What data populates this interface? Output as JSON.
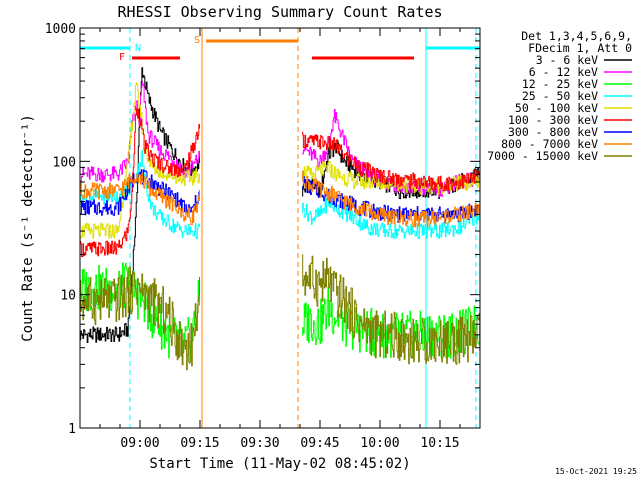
{
  "chart_data": {
    "type": "line",
    "title": "RHESSI Observing Summary Count Rates",
    "xlabel": "Start Time (11-May-02 08:45:02)",
    "ylabel": "Count Rate (s⁻¹ detector⁻¹)",
    "yscale": "log",
    "ylim": [
      1,
      1000
    ],
    "xlim_minutes": [
      0,
      100
    ],
    "x_ticks": [
      {
        "label": "09:00",
        "t": 15
      },
      {
        "label": "09:15",
        "t": 30
      },
      {
        "label": "09:30",
        "t": 45
      },
      {
        "label": "09:45",
        "t": 60
      },
      {
        "label": "10:00",
        "t": 75
      },
      {
        "label": "10:15",
        "t": 90
      }
    ],
    "y_ticks": [
      {
        "label": "1",
        "v": 1
      },
      {
        "label": "10",
        "v": 10
      },
      {
        "label": "100",
        "v": 100
      },
      {
        "label": "1000",
        "v": 1000
      }
    ],
    "legend_header": [
      "Det 1,3,4,5,6,9,",
      "FDecim 1, Att 0"
    ],
    "legend_position": "right",
    "segments_minutes": [
      [
        0,
        30
      ],
      [
        55.5,
        100
      ]
    ],
    "series": [
      {
        "name": "3 - 6 keV",
        "color": "#000000",
        "points": [
          [
            9.5,
            5
          ],
          [
            12,
            5.5
          ],
          [
            14,
            40
          ],
          [
            14.8,
            200
          ],
          [
            15.5,
            500
          ],
          [
            17,
            300
          ],
          [
            20,
            170
          ],
          [
            23,
            120
          ],
          [
            26,
            90
          ],
          [
            28,
            85
          ],
          [
            30,
            100
          ],
          [
            55.5,
            60
          ],
          [
            58,
            70
          ],
          [
            60,
            60
          ],
          [
            62,
            110
          ],
          [
            64,
            130
          ],
          [
            66,
            100
          ],
          [
            70,
            80
          ],
          [
            75,
            70
          ],
          [
            80,
            60
          ],
          [
            85,
            60
          ],
          [
            90,
            60
          ],
          [
            95,
            70
          ],
          [
            100,
            80
          ]
        ]
      },
      {
        "name": "6 - 12 keV",
        "color": "#ff00ff",
        "points": [
          [
            9.5,
            80
          ],
          [
            12,
            100
          ],
          [
            13,
            190
          ],
          [
            14,
            280
          ],
          [
            14.8,
            200
          ],
          [
            15.5,
            400
          ],
          [
            17,
            160
          ],
          [
            20,
            120
          ],
          [
            24,
            100
          ],
          [
            26,
            80
          ],
          [
            28,
            90
          ],
          [
            30,
            110
          ],
          [
            55.5,
            130
          ],
          [
            58,
            110
          ],
          [
            60,
            100
          ],
          [
            62,
            130
          ],
          [
            63.5,
            220
          ],
          [
            65,
            170
          ],
          [
            68,
            100
          ],
          [
            72,
            80
          ],
          [
            76,
            70
          ],
          [
            80,
            65
          ],
          [
            85,
            62
          ],
          [
            90,
            62
          ],
          [
            95,
            70
          ],
          [
            100,
            75
          ]
        ]
      },
      {
        "name": "12 - 25 keV",
        "color": "#00ff00",
        "points": [
          [
            9.5,
            11
          ],
          [
            12,
            12
          ],
          [
            14,
            10
          ],
          [
            16,
            9
          ],
          [
            18,
            7
          ],
          [
            20,
            6
          ],
          [
            22,
            5
          ],
          [
            24,
            4.5
          ],
          [
            26,
            4
          ],
          [
            28,
            5
          ],
          [
            30,
            10
          ],
          [
            55.5,
            6
          ],
          [
            58,
            6.5
          ],
          [
            60,
            6
          ],
          [
            62,
            8
          ],
          [
            64,
            7
          ],
          [
            66,
            6
          ],
          [
            70,
            5.5
          ],
          [
            75,
            5
          ],
          [
            80,
            5
          ],
          [
            85,
            5
          ],
          [
            90,
            5
          ],
          [
            95,
            5
          ],
          [
            100,
            6
          ]
        ]
      },
      {
        "name": "25 - 50 keV",
        "color": "#00ffff",
        "points": [
          [
            9.5,
            55
          ],
          [
            12,
            60
          ],
          [
            14,
            80
          ],
          [
            15.5,
            110
          ],
          [
            16,
            75
          ],
          [
            18,
            45
          ],
          [
            20,
            38
          ],
          [
            24,
            32
          ],
          [
            26,
            30
          ],
          [
            28,
            30
          ],
          [
            30,
            30
          ],
          [
            55.5,
            45
          ],
          [
            58,
            38
          ],
          [
            60,
            40
          ],
          [
            62,
            50
          ],
          [
            64,
            45
          ],
          [
            67,
            40
          ],
          [
            72,
            32
          ],
          [
            76,
            30
          ],
          [
            80,
            30
          ],
          [
            85,
            30
          ],
          [
            90,
            30
          ],
          [
            95,
            32
          ],
          [
            100,
            40
          ]
        ]
      },
      {
        "name": "50 - 100 keV",
        "color": "#e0e000",
        "points": [
          [
            9.5,
            30
          ],
          [
            12,
            100
          ],
          [
            13,
            200
          ],
          [
            14,
            360
          ],
          [
            15,
            250
          ],
          [
            16,
            130
          ],
          [
            18,
            90
          ],
          [
            22,
            80
          ],
          [
            26,
            75
          ],
          [
            28,
            75
          ],
          [
            30,
            80
          ],
          [
            55.5,
            85
          ],
          [
            58,
            78
          ],
          [
            60,
            85
          ],
          [
            62,
            90
          ],
          [
            64,
            80
          ],
          [
            68,
            72
          ],
          [
            72,
            70
          ],
          [
            76,
            70
          ],
          [
            80,
            68
          ],
          [
            85,
            65
          ],
          [
            90,
            65
          ],
          [
            95,
            68
          ],
          [
            100,
            72
          ]
        ]
      },
      {
        "name": "100 - 300 keV",
        "color": "#ff0000",
        "points": [
          [
            9.5,
            22
          ],
          [
            12,
            30
          ],
          [
            13,
            60
          ],
          [
            14,
            250
          ],
          [
            15,
            220
          ],
          [
            16,
            130
          ],
          [
            18,
            105
          ],
          [
            22,
            90
          ],
          [
            26,
            85
          ],
          [
            28,
            120
          ],
          [
            30,
            190
          ],
          [
            55.5,
            145
          ],
          [
            58,
            140
          ],
          [
            60,
            140
          ],
          [
            62,
            135
          ],
          [
            64,
            130
          ],
          [
            66,
            110
          ],
          [
            70,
            90
          ],
          [
            74,
            80
          ],
          [
            78,
            75
          ],
          [
            82,
            72
          ],
          [
            86,
            70
          ],
          [
            90,
            68
          ],
          [
            95,
            70
          ],
          [
            100,
            78
          ]
        ]
      },
      {
        "name": "300 - 800 keV",
        "color": "#0000ff",
        "points": [
          [
            9.5,
            45
          ],
          [
            11,
            55
          ],
          [
            13,
            70
          ],
          [
            14,
            80
          ],
          [
            16,
            75
          ],
          [
            18,
            70
          ],
          [
            20,
            62
          ],
          [
            22,
            58
          ],
          [
            24,
            52
          ],
          [
            26,
            45
          ],
          [
            28,
            42
          ],
          [
            30,
            60
          ],
          [
            55.5,
            70
          ],
          [
            58,
            62
          ],
          [
            60,
            60
          ],
          [
            62,
            55
          ],
          [
            64,
            52
          ],
          [
            66,
            50
          ],
          [
            70,
            45
          ],
          [
            74,
            42
          ],
          [
            78,
            40
          ],
          [
            82,
            40
          ],
          [
            86,
            40
          ],
          [
            90,
            40
          ],
          [
            95,
            40
          ],
          [
            100,
            45
          ]
        ]
      },
      {
        "name": "800 - 7000 keV",
        "color": "#ff8000",
        "points": [
          [
            9.5,
            60
          ],
          [
            11,
            65
          ],
          [
            13,
            75
          ],
          [
            14,
            80
          ],
          [
            16,
            70
          ],
          [
            18,
            60
          ],
          [
            20,
            55
          ],
          [
            22,
            50
          ],
          [
            24,
            45
          ],
          [
            26,
            40
          ],
          [
            28,
            38
          ],
          [
            30,
            55
          ],
          [
            55.5,
            75
          ],
          [
            58,
            65
          ],
          [
            60,
            62
          ],
          [
            62,
            58
          ],
          [
            64,
            55
          ],
          [
            66,
            50
          ],
          [
            70,
            45
          ],
          [
            74,
            40
          ],
          [
            78,
            38
          ],
          [
            82,
            37
          ],
          [
            86,
            37
          ],
          [
            90,
            38
          ],
          [
            95,
            40
          ],
          [
            100,
            44
          ]
        ]
      },
      {
        "name": "7000 - 15000 keV",
        "color": "#808000",
        "points": [
          [
            9.5,
            9
          ],
          [
            11,
            10
          ],
          [
            13,
            11
          ],
          [
            14,
            12
          ],
          [
            16,
            10
          ],
          [
            18,
            9
          ],
          [
            20,
            8
          ],
          [
            22,
            7
          ],
          [
            24,
            5
          ],
          [
            26,
            4
          ],
          [
            28,
            4.2
          ],
          [
            30,
            12
          ],
          [
            55.5,
            14
          ],
          [
            58,
            13
          ],
          [
            60,
            12
          ],
          [
            62,
            13
          ],
          [
            64,
            10
          ],
          [
            66,
            9
          ],
          [
            70,
            6
          ],
          [
            74,
            5
          ],
          [
            78,
            5
          ],
          [
            82,
            4.5
          ],
          [
            86,
            4.5
          ],
          [
            90,
            4.5
          ],
          [
            95,
            4.5
          ],
          [
            100,
            5
          ]
        ]
      }
    ],
    "annotations": [
      {
        "label": "F",
        "color": "#ff0000",
        "x_minutes": 10.5
      },
      {
        "label": "N",
        "color": "#00ffff",
        "x_minutes": 14.5
      },
      {
        "label": "S",
        "color": "#ff8000",
        "x_minutes": 29.3
      }
    ],
    "state_bars": [
      {
        "kind": "night",
        "color": "#00ffff",
        "spans": [
          [
            0,
            12.5
          ],
          [
            86.5,
            100
          ]
        ]
      },
      {
        "kind": "flare",
        "color": "#ff0000",
        "spans": [
          [
            13,
            25
          ],
          [
            58,
            83.5
          ]
        ]
      },
      {
        "kind": "saa",
        "color": "#ff8000",
        "spans": [
          [
            31.5,
            54.5
          ]
        ]
      }
    ],
    "vlines": [
      {
        "color": "#00ffff",
        "style": "solid",
        "x": [
          0,
          86.5
        ]
      },
      {
        "color": "#00ffff",
        "style": "dashed",
        "x": [
          12.5,
          99
        ]
      },
      {
        "color": "#ff8000",
        "style": "solid",
        "x": [
          30.5
        ]
      },
      {
        "color": "#ff8000",
        "style": "dashed",
        "x": [
          54.5
        ]
      }
    ],
    "grid": false
  },
  "footer": {
    "timestamp": "15-Oct-2021 19:25"
  }
}
